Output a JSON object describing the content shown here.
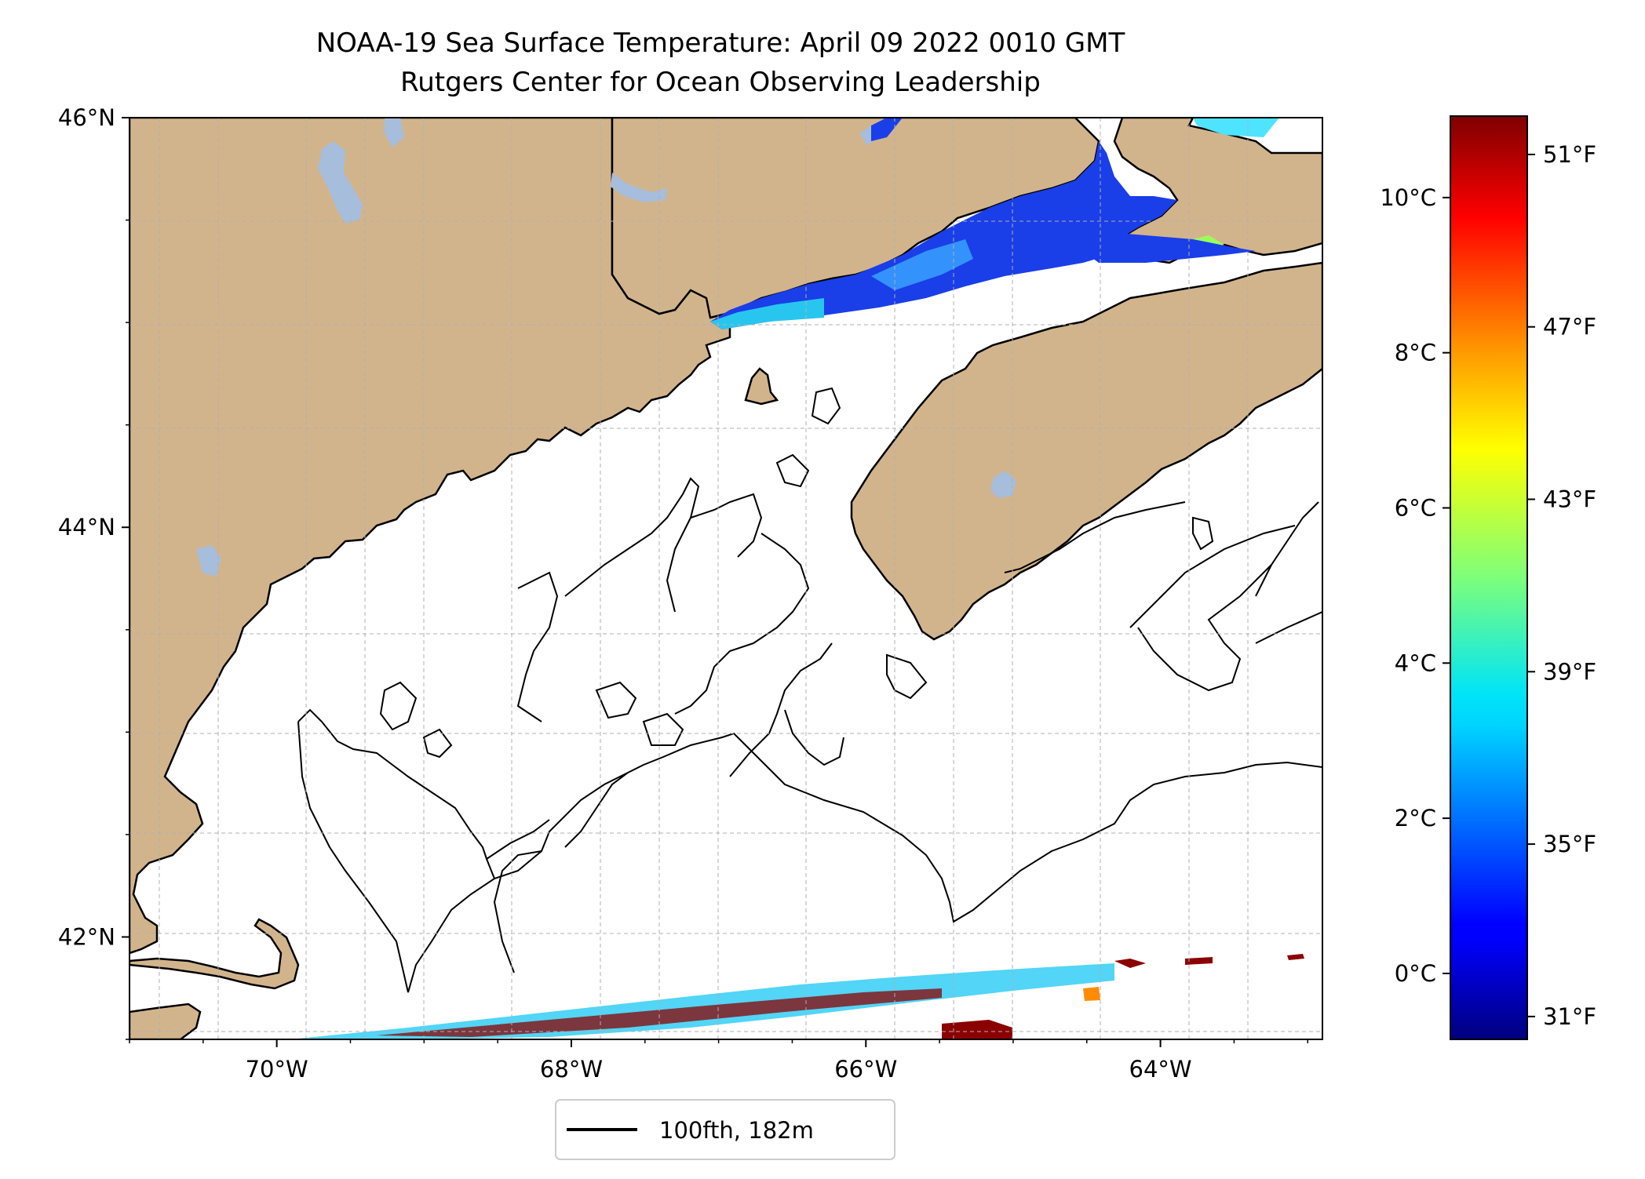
{
  "title": {
    "line1": "NOAA-19 Sea Surface Temperature: April 09 2022 0010 GMT",
    "line2": "Rutgers Center for Ocean Observing Leadership"
  },
  "map": {
    "lon_range": [
      -71.0,
      -62.9
    ],
    "lat_range": [
      41.5,
      46.0
    ],
    "lon_ticks": [
      {
        "value": -70,
        "label": "70°W"
      },
      {
        "value": -68,
        "label": "68°W"
      },
      {
        "value": -66,
        "label": "66°W"
      },
      {
        "value": -64,
        "label": "64°W"
      }
    ],
    "lat_ticks": [
      {
        "value": 46,
        "label": "46°N"
      },
      {
        "value": 44,
        "label": "44°N"
      },
      {
        "value": 42,
        "label": "42°N"
      }
    ],
    "colors": {
      "land": "#d2b48c",
      "lakes": "#a6bddb",
      "ocean": "#ffffff",
      "grid": "#b0b0b0",
      "coast": "#000000"
    }
  },
  "colorbar": {
    "celsius_ticks": [
      {
        "value": 0,
        "label": "0°C"
      },
      {
        "value": 2,
        "label": "2°C"
      },
      {
        "value": 4,
        "label": "4°C"
      },
      {
        "value": 6,
        "label": "6°C"
      },
      {
        "value": 8,
        "label": "8°C"
      },
      {
        "value": 10,
        "label": "10°C"
      }
    ],
    "fahrenheit_ticks": [
      {
        "value": 31,
        "label": "31°F"
      },
      {
        "value": 35,
        "label": "35°F"
      },
      {
        "value": 39,
        "label": "39°F"
      },
      {
        "value": 43,
        "label": "43°F"
      },
      {
        "value": 47,
        "label": "47°F"
      },
      {
        "value": 51,
        "label": "51°F"
      }
    ],
    "range_c": [
      -0.85,
      11.05
    ],
    "colormap": "jet"
  },
  "legend": {
    "label": "100fth, 182m"
  }
}
